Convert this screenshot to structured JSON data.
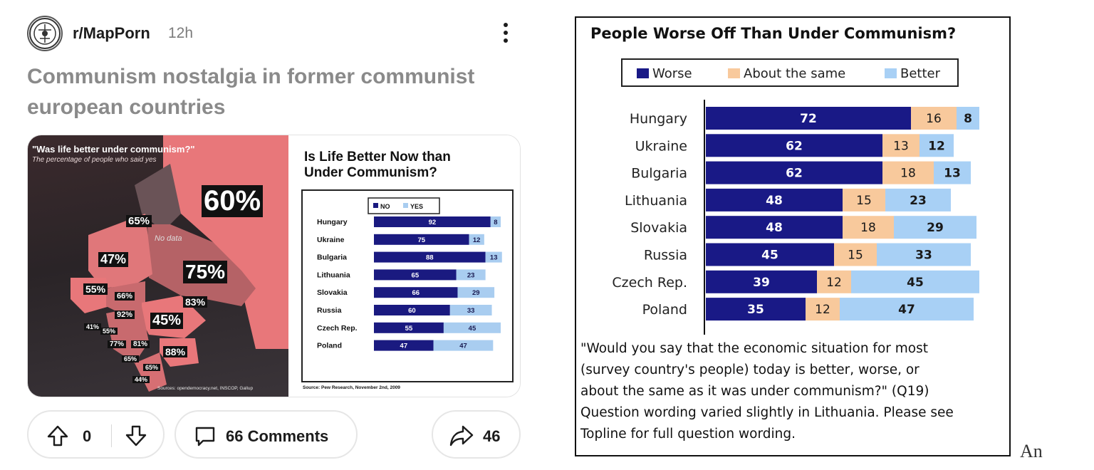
{
  "post": {
    "subreddit": "r/MapPorn",
    "age": "12h",
    "title": "Communism nostalgia in former communist european countries",
    "actions": {
      "score": "0",
      "comments_label": "66 Comments",
      "shares": "46"
    }
  },
  "map_panel": {
    "title": "\"Was life better under communism?\"",
    "subtitle": "The percentage of people who said yes",
    "no_data": "No data",
    "sources": "Sources: opendemocracy.net, INSCOP, Gallup",
    "labels": [
      {
        "id": "russia",
        "text": "60%"
      },
      {
        "id": "ukraine",
        "text": "75%"
      },
      {
        "id": "belarus-north",
        "text": "65%"
      },
      {
        "id": "poland",
        "text": "47%"
      },
      {
        "id": "romania",
        "text": "45%"
      },
      {
        "id": "germany-east",
        "text": "55%"
      },
      {
        "id": "slovakia",
        "text": "66%"
      },
      {
        "id": "hungary",
        "text": "92%"
      },
      {
        "id": "moldova",
        "text": "83%"
      },
      {
        "id": "slovenia",
        "text": "41%"
      },
      {
        "id": "croatia",
        "text": "55%"
      },
      {
        "id": "bosnia",
        "text": "77%"
      },
      {
        "id": "serbia",
        "text": "81%"
      },
      {
        "id": "montenegro",
        "text": "65%"
      },
      {
        "id": "bulgaria",
        "text": "88%"
      },
      {
        "id": "macedonia",
        "text": "65%"
      },
      {
        "id": "albania",
        "text": "44%"
      }
    ]
  },
  "pew_small": {
    "title_line1": "Is Life Better Now than",
    "title_line2": "Under Communism?",
    "source": "Source: Pew Research, November 2nd, 2009",
    "chart_data": {
      "type": "bar",
      "orientation": "horizontal",
      "stacked": true,
      "categories": [
        "Hungary",
        "Ukraine",
        "Bulgaria",
        "Lithuania",
        "Slovakia",
        "Russia",
        "Czech Rep.",
        "Poland"
      ],
      "series": [
        {
          "name": "NO",
          "color": "#1a1a80",
          "values": [
            92,
            75,
            88,
            65,
            66,
            60,
            55,
            47
          ]
        },
        {
          "name": "YES",
          "color": "#a9cdf0",
          "values": [
            8,
            12,
            13,
            23,
            29,
            33,
            45,
            47
          ]
        }
      ],
      "legend": "top",
      "xlim": [
        0,
        100
      ]
    }
  },
  "big_chart": {
    "chart_data": {
      "type": "bar",
      "orientation": "horizontal",
      "stacked": true,
      "title": "People Worse Off Than Under Communism?",
      "categories": [
        "Hungary",
        "Ukraine",
        "Bulgaria",
        "Lithuania",
        "Slovakia",
        "Russia",
        "Czech Rep.",
        "Poland"
      ],
      "series": [
        {
          "name": "Worse",
          "color": "#191986",
          "values": [
            72,
            62,
            62,
            48,
            48,
            45,
            39,
            35
          ]
        },
        {
          "name": "About the same",
          "color": "#f8c99c",
          "values": [
            16,
            13,
            18,
            15,
            18,
            15,
            12,
            12
          ]
        },
        {
          "name": "Better",
          "color": "#a8d0f5",
          "values": [
            8,
            12,
            13,
            23,
            29,
            33,
            45,
            47
          ]
        }
      ],
      "legend": "top",
      "xlim": [
        0,
        100
      ]
    },
    "question_lines": [
      "\"Would you say that the economic situation for most",
      "(survey country's people) today is better, worse, or",
      "about the same as it was under communism?\" (Q19)",
      "Question wording varied slightly in Lithuania. Please see",
      "Topline for full question wording."
    ]
  },
  "corner_text": "An"
}
